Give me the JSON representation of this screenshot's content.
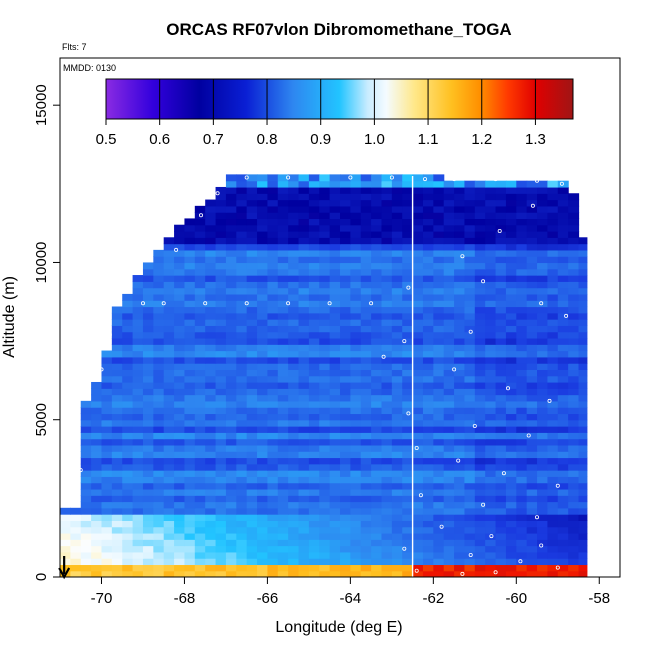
{
  "chart_data": {
    "type": "heatmap",
    "title": "ORCAS RF07vlon Dibromomethane_TOGA",
    "annotations": [
      "Flts: 7",
      "MMDD: 0130"
    ],
    "xlabel": "Longitude (deg E)",
    "ylabel": "Altitude (m)",
    "xlim": [
      -71,
      -57.5
    ],
    "ylim": [
      0,
      16500
    ],
    "xticks": [
      -70,
      -68,
      -66,
      -64,
      -62,
      -60,
      -58
    ],
    "yticks": [
      0,
      5000,
      10000,
      15000
    ],
    "colorbar": {
      "range": [
        0.5,
        1.37
      ],
      "ticks": [
        0.5,
        0.6,
        0.7,
        0.8,
        0.9,
        1.0,
        1.1,
        1.2,
        1.3
      ],
      "tick_labels": [
        "0.5",
        "0.6",
        "0.7",
        "0.8",
        "0.9",
        "1.0",
        "1.1",
        "1.2",
        "1.3"
      ]
    },
    "vertical_line_lon": -62.5,
    "arrow_lon": -70.9,
    "field_extent": {
      "lon": [
        -71,
        -58.3
      ],
      "alt": [
        0,
        12800
      ]
    },
    "upper_boundary": [
      [
        -70.4,
        5600
      ],
      [
        -70.0,
        6600
      ],
      [
        -69.6,
        8700
      ],
      [
        -68.6,
        10400
      ],
      [
        -67.8,
        11600
      ],
      [
        -67.2,
        12200
      ],
      [
        -66.9,
        12750
      ],
      [
        -62.5,
        12750
      ],
      [
        -58.7,
        12500
      ],
      [
        -58.3,
        10500
      ],
      [
        -58.3,
        2000
      ]
    ],
    "sample_points": [
      [
        -70.5,
        3400
      ],
      [
        -70.3,
        5700
      ],
      [
        -70.0,
        6600
      ],
      [
        -69.8,
        7700
      ],
      [
        -69.7,
        8700
      ],
      [
        -69.0,
        8700
      ],
      [
        -68.5,
        8700
      ],
      [
        -67.5,
        8700
      ],
      [
        -66.5,
        8700
      ],
      [
        -65.5,
        8700
      ],
      [
        -64.5,
        8700
      ],
      [
        -63.5,
        8700
      ],
      [
        -68.2,
        10400
      ],
      [
        -67.6,
        11500
      ],
      [
        -67.2,
        12200
      ],
      [
        -66.5,
        12700
      ],
      [
        -65.5,
        12700
      ],
      [
        -64.0,
        12700
      ],
      [
        -63.0,
        12700
      ],
      [
        -62.2,
        12650
      ],
      [
        -61.5,
        12650
      ],
      [
        -60.5,
        12650
      ],
      [
        -59.5,
        12600
      ],
      [
        -58.9,
        12500
      ],
      [
        -59.6,
        11800
      ],
      [
        -60.4,
        11000
      ],
      [
        -61.3,
        10200
      ],
      [
        -62.6,
        9200
      ],
      [
        -60.8,
        9400
      ],
      [
        -59.4,
        8700
      ],
      [
        -58.8,
        8300
      ],
      [
        -61.1,
        7800
      ],
      [
        -62.7,
        7500
      ],
      [
        -63.2,
        7000
      ],
      [
        -61.5,
        6600
      ],
      [
        -60.2,
        6000
      ],
      [
        -59.2,
        5600
      ],
      [
        -62.6,
        5200
      ],
      [
        -61.0,
        4800
      ],
      [
        -59.7,
        4500
      ],
      [
        -62.4,
        4100
      ],
      [
        -61.4,
        3700
      ],
      [
        -60.3,
        3300
      ],
      [
        -59.0,
        2900
      ],
      [
        -62.3,
        2600
      ],
      [
        -60.8,
        2300
      ],
      [
        -59.5,
        1900
      ],
      [
        -61.8,
        1600
      ],
      [
        -60.6,
        1300
      ],
      [
        -59.4,
        1000
      ],
      [
        -62.7,
        900
      ],
      [
        -61.1,
        700
      ],
      [
        -59.9,
        500
      ],
      [
        -59.0,
        300
      ],
      [
        -62.4,
        200
      ],
      [
        -61.3,
        100
      ],
      [
        -60.5,
        150
      ]
    ]
  }
}
